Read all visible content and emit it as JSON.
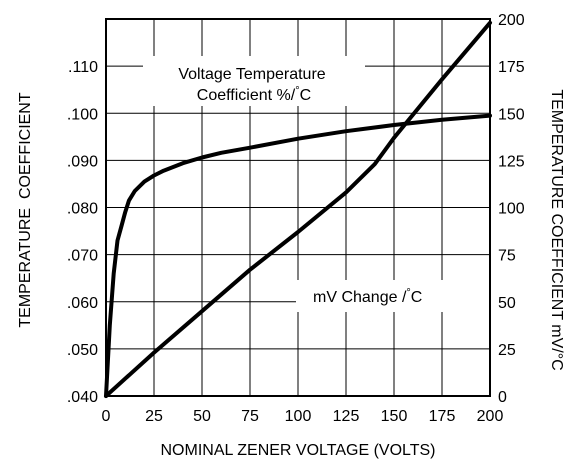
{
  "chart_data": {
    "type": "line",
    "grid": true,
    "xlabel": "NOMINAL ZENER VOLTAGE (VOLTS)",
    "ylabel_left": "TEMPERATURE  COEFFICIENT",
    "ylabel_right": "TEMPERATURE COEFFICIENT mV/°C",
    "xlim": [
      0,
      200
    ],
    "ylim_left": [
      0.04,
      0.12
    ],
    "ylim_right": [
      0,
      200
    ],
    "x_ticks": [
      0,
      25,
      50,
      75,
      100,
      125,
      150,
      175,
      200
    ],
    "x_tick_labels": [
      "0",
      "25",
      "50",
      "75",
      "100",
      "125",
      "150",
      "175",
      "200"
    ],
    "y_left_ticks": [
      0.04,
      0.05,
      0.06,
      0.07,
      0.08,
      0.09,
      0.1,
      0.11
    ],
    "y_left_tick_labels": [
      ".040",
      ".050",
      ".060",
      ".070",
      ".080",
      ".090",
      ".100",
      ".110"
    ],
    "y_right_ticks": [
      0,
      25,
      50,
      75,
      100,
      125,
      150,
      175,
      200
    ],
    "y_right_tick_labels": [
      "0",
      "25",
      "50",
      "75",
      "100",
      "125",
      "150",
      "175",
      "200"
    ],
    "series": [
      {
        "name": "Voltage Temperature Coefficient %/°C",
        "axis": "left",
        "label_lines": [
          "Voltage Temperature",
          "Coefficient %/",
          "°",
          "C"
        ],
        "x": [
          0,
          2,
          4,
          6,
          8,
          10,
          12,
          15,
          20,
          25,
          30,
          40,
          50,
          60,
          75,
          100,
          125,
          150,
          175,
          200
        ],
        "y": [
          0.04,
          0.055,
          0.066,
          0.073,
          0.076,
          0.079,
          0.0815,
          0.0835,
          0.0855,
          0.0868,
          0.0878,
          0.0894,
          0.0906,
          0.0916,
          0.0927,
          0.0946,
          0.0962,
          0.0975,
          0.0986,
          0.0995
        ]
      },
      {
        "name": "mV Change /°C",
        "axis": "right",
        "label_lines": [
          "mV Change /",
          "°",
          "C"
        ],
        "x": [
          0,
          25,
          50,
          75,
          100,
          125,
          140,
          150,
          175,
          200
        ],
        "y": [
          0,
          23,
          45,
          67,
          87,
          108,
          123,
          137,
          168,
          198
        ]
      }
    ]
  }
}
